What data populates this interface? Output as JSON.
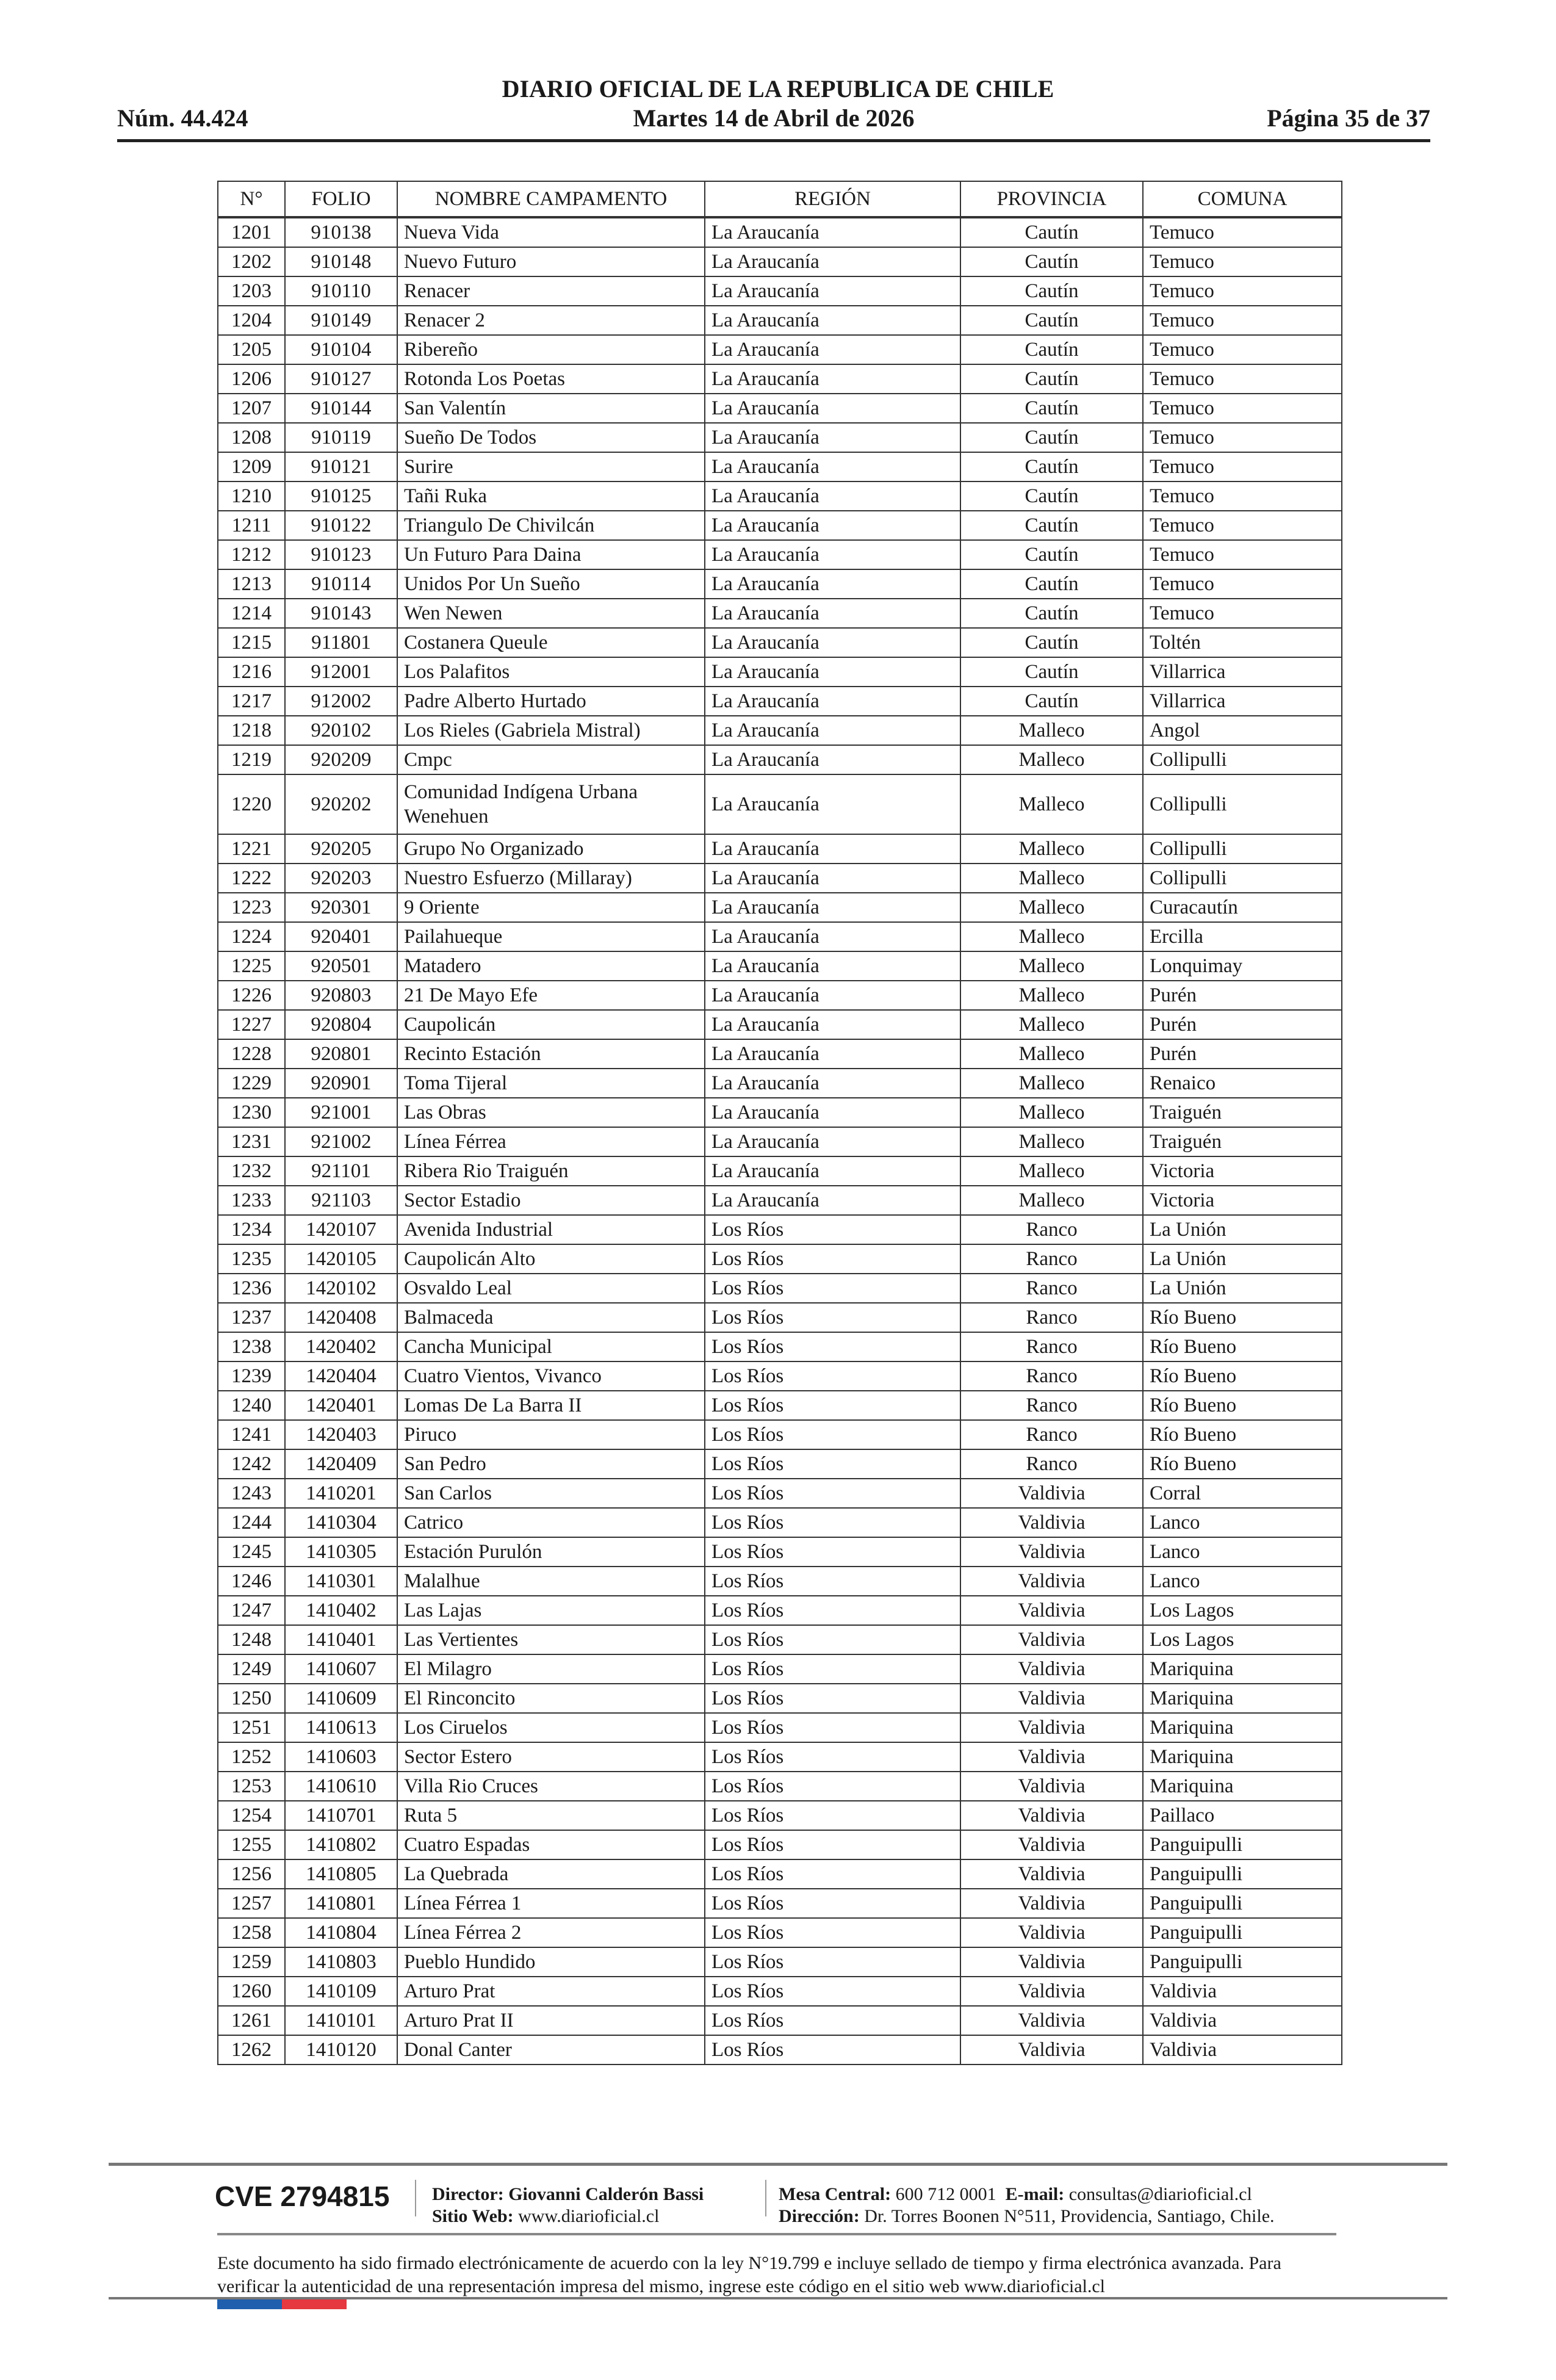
{
  "header": {
    "title": "DIARIO OFICIAL DE LA REPUBLICA DE CHILE",
    "issue": "Núm. 44.424",
    "date": "Martes 14 de Abril de 2026",
    "page": "Página 35 de 37"
  },
  "table": {
    "columns": [
      "N°",
      "FOLIO",
      "NOMBRE CAMPAMENTO",
      "REGIÓN",
      "PROVINCIA",
      "COMUNA"
    ],
    "rows": [
      [
        "1201",
        "910138",
        "Nueva Vida",
        "La Araucanía",
        "Cautín",
        "Temuco"
      ],
      [
        "1202",
        "910148",
        "Nuevo Futuro",
        "La Araucanía",
        "Cautín",
        "Temuco"
      ],
      [
        "1203",
        "910110",
        "Renacer",
        "La Araucanía",
        "Cautín",
        "Temuco"
      ],
      [
        "1204",
        "910149",
        "Renacer 2",
        "La Araucanía",
        "Cautín",
        "Temuco"
      ],
      [
        "1205",
        "910104",
        "Ribereño",
        "La Araucanía",
        "Cautín",
        "Temuco"
      ],
      [
        "1206",
        "910127",
        "Rotonda Los Poetas",
        "La Araucanía",
        "Cautín",
        "Temuco"
      ],
      [
        "1207",
        "910144",
        "San Valentín",
        "La Araucanía",
        "Cautín",
        "Temuco"
      ],
      [
        "1208",
        "910119",
        "Sueño De Todos",
        "La Araucanía",
        "Cautín",
        "Temuco"
      ],
      [
        "1209",
        "910121",
        "Surire",
        "La Araucanía",
        "Cautín",
        "Temuco"
      ],
      [
        "1210",
        "910125",
        "Tañi Ruka",
        "La Araucanía",
        "Cautín",
        "Temuco"
      ],
      [
        "1211",
        "910122",
        "Triangulo De Chivilcán",
        "La Araucanía",
        "Cautín",
        "Temuco"
      ],
      [
        "1212",
        "910123",
        "Un Futuro Para Daina",
        "La Araucanía",
        "Cautín",
        "Temuco"
      ],
      [
        "1213",
        "910114",
        "Unidos Por Un Sueño",
        "La Araucanía",
        "Cautín",
        "Temuco"
      ],
      [
        "1214",
        "910143",
        "Wen Newen",
        "La Araucanía",
        "Cautín",
        "Temuco"
      ],
      [
        "1215",
        "911801",
        "Costanera Queule",
        "La Araucanía",
        "Cautín",
        "Toltén"
      ],
      [
        "1216",
        "912001",
        "Los Palafitos",
        "La Araucanía",
        "Cautín",
        "Villarrica"
      ],
      [
        "1217",
        "912002",
        "Padre Alberto Hurtado",
        "La Araucanía",
        "Cautín",
        "Villarrica"
      ],
      [
        "1218",
        "920102",
        "Los Rieles (Gabriela Mistral)",
        "La Araucanía",
        "Malleco",
        "Angol"
      ],
      [
        "1219",
        "920209",
        "Cmpc",
        "La Araucanía",
        "Malleco",
        "Collipulli"
      ],
      [
        "1220",
        "920202",
        "Comunidad Indígena Urbana Wenehuen",
        "La Araucanía",
        "Malleco",
        "Collipulli"
      ],
      [
        "1221",
        "920205",
        "Grupo No Organizado",
        "La Araucanía",
        "Malleco",
        "Collipulli"
      ],
      [
        "1222",
        "920203",
        "Nuestro Esfuerzo (Millaray)",
        "La Araucanía",
        "Malleco",
        "Collipulli"
      ],
      [
        "1223",
        "920301",
        "9 Oriente",
        "La Araucanía",
        "Malleco",
        "Curacautín"
      ],
      [
        "1224",
        "920401",
        "Pailahueque",
        "La Araucanía",
        "Malleco",
        "Ercilla"
      ],
      [
        "1225",
        "920501",
        "Matadero",
        "La Araucanía",
        "Malleco",
        "Lonquimay"
      ],
      [
        "1226",
        "920803",
        "21 De Mayo Efe",
        "La Araucanía",
        "Malleco",
        "Purén"
      ],
      [
        "1227",
        "920804",
        "Caupolicán",
        "La Araucanía",
        "Malleco",
        "Purén"
      ],
      [
        "1228",
        "920801",
        "Recinto Estación",
        "La Araucanía",
        "Malleco",
        "Purén"
      ],
      [
        "1229",
        "920901",
        "Toma Tijeral",
        "La Araucanía",
        "Malleco",
        "Renaico"
      ],
      [
        "1230",
        "921001",
        "Las Obras",
        "La Araucanía",
        "Malleco",
        "Traiguén"
      ],
      [
        "1231",
        "921002",
        "Línea Férrea",
        "La Araucanía",
        "Malleco",
        "Traiguén"
      ],
      [
        "1232",
        "921101",
        "Ribera Rio Traiguén",
        "La Araucanía",
        "Malleco",
        "Victoria"
      ],
      [
        "1233",
        "921103",
        "Sector Estadio",
        "La Araucanía",
        "Malleco",
        "Victoria"
      ],
      [
        "1234",
        "1420107",
        "Avenida Industrial",
        "Los Ríos",
        "Ranco",
        "La Unión"
      ],
      [
        "1235",
        "1420105",
        "Caupolicán Alto",
        "Los Ríos",
        "Ranco",
        "La Unión"
      ],
      [
        "1236",
        "1420102",
        "Osvaldo Leal",
        "Los Ríos",
        "Ranco",
        "La Unión"
      ],
      [
        "1237",
        "1420408",
        "Balmaceda",
        "Los Ríos",
        "Ranco",
        "Río Bueno"
      ],
      [
        "1238",
        "1420402",
        "Cancha Municipal",
        "Los Ríos",
        "Ranco",
        "Río Bueno"
      ],
      [
        "1239",
        "1420404",
        "Cuatro Vientos, Vivanco",
        "Los Ríos",
        "Ranco",
        "Río Bueno"
      ],
      [
        "1240",
        "1420401",
        "Lomas De La Barra II",
        "Los Ríos",
        "Ranco",
        "Río Bueno"
      ],
      [
        "1241",
        "1420403",
        "Piruco",
        "Los Ríos",
        "Ranco",
        "Río Bueno"
      ],
      [
        "1242",
        "1420409",
        "San Pedro",
        "Los Ríos",
        "Ranco",
        "Río Bueno"
      ],
      [
        "1243",
        "1410201",
        "San Carlos",
        "Los Ríos",
        "Valdivia",
        "Corral"
      ],
      [
        "1244",
        "1410304",
        "Catrico",
        "Los Ríos",
        "Valdivia",
        "Lanco"
      ],
      [
        "1245",
        "1410305",
        "Estación Purulón",
        "Los Ríos",
        "Valdivia",
        "Lanco"
      ],
      [
        "1246",
        "1410301",
        "Malalhue",
        "Los Ríos",
        "Valdivia",
        "Lanco"
      ],
      [
        "1247",
        "1410402",
        "Las Lajas",
        "Los Ríos",
        "Valdivia",
        "Los Lagos"
      ],
      [
        "1248",
        "1410401",
        "Las Vertientes",
        "Los Ríos",
        "Valdivia",
        "Los Lagos"
      ],
      [
        "1249",
        "1410607",
        "El Milagro",
        "Los Ríos",
        "Valdivia",
        "Mariquina"
      ],
      [
        "1250",
        "1410609",
        "El Rinconcito",
        "Los Ríos",
        "Valdivia",
        "Mariquina"
      ],
      [
        "1251",
        "1410613",
        "Los Ciruelos",
        "Los Ríos",
        "Valdivia",
        "Mariquina"
      ],
      [
        "1252",
        "1410603",
        "Sector Estero",
        "Los Ríos",
        "Valdivia",
        "Mariquina"
      ],
      [
        "1253",
        "1410610",
        "Villa Rio Cruces",
        "Los Ríos",
        "Valdivia",
        "Mariquina"
      ],
      [
        "1254",
        "1410701",
        "Ruta 5",
        "Los Ríos",
        "Valdivia",
        "Paillaco"
      ],
      [
        "1255",
        "1410802",
        "Cuatro Espadas",
        "Los Ríos",
        "Valdivia",
        "Panguipulli"
      ],
      [
        "1256",
        "1410805",
        "La Quebrada",
        "Los Ríos",
        "Valdivia",
        "Panguipulli"
      ],
      [
        "1257",
        "1410801",
        "Línea Férrea 1",
        "Los Ríos",
        "Valdivia",
        "Panguipulli"
      ],
      [
        "1258",
        "1410804",
        "Línea Férrea 2",
        "Los Ríos",
        "Valdivia",
        "Panguipulli"
      ],
      [
        "1259",
        "1410803",
        "Pueblo Hundido",
        "Los Ríos",
        "Valdivia",
        "Panguipulli"
      ],
      [
        "1260",
        "1410109",
        "Arturo Prat",
        "Los Ríos",
        "Valdivia",
        "Valdivia"
      ],
      [
        "1261",
        "1410101",
        "Arturo Prat II",
        "Los Ríos",
        "Valdivia",
        "Valdivia"
      ],
      [
        "1262",
        "1410120",
        "Donal Canter",
        "Los Ríos",
        "Valdivia",
        "Valdivia"
      ]
    ]
  },
  "footer": {
    "cve": "CVE 2794815",
    "director_label": "Director:",
    "director": "Giovanni Calderón Bassi",
    "web_label": "Sitio Web:",
    "web": "www.diarioficial.cl",
    "phone_label": "Mesa Central:",
    "phone": "600 712 0001",
    "email_label": "E-mail:",
    "email": "consultas@diarioficial.cl",
    "address_label": "Dirección:",
    "address": "Dr. Torres Boonen N°511, Providencia, Santiago, Chile.",
    "legal": "Este documento ha sido firmado electrónicamente de acuerdo con la ley N°19.799 e incluye sellado de tiempo y firma electrónica avanzada. Para verificar la autenticidad de una representación impresa del mismo, ingrese este código en el sitio web www.diarioficial.cl"
  },
  "colors": {
    "flag_blue": "#1f5fae",
    "flag_red": "#e5383f"
  }
}
